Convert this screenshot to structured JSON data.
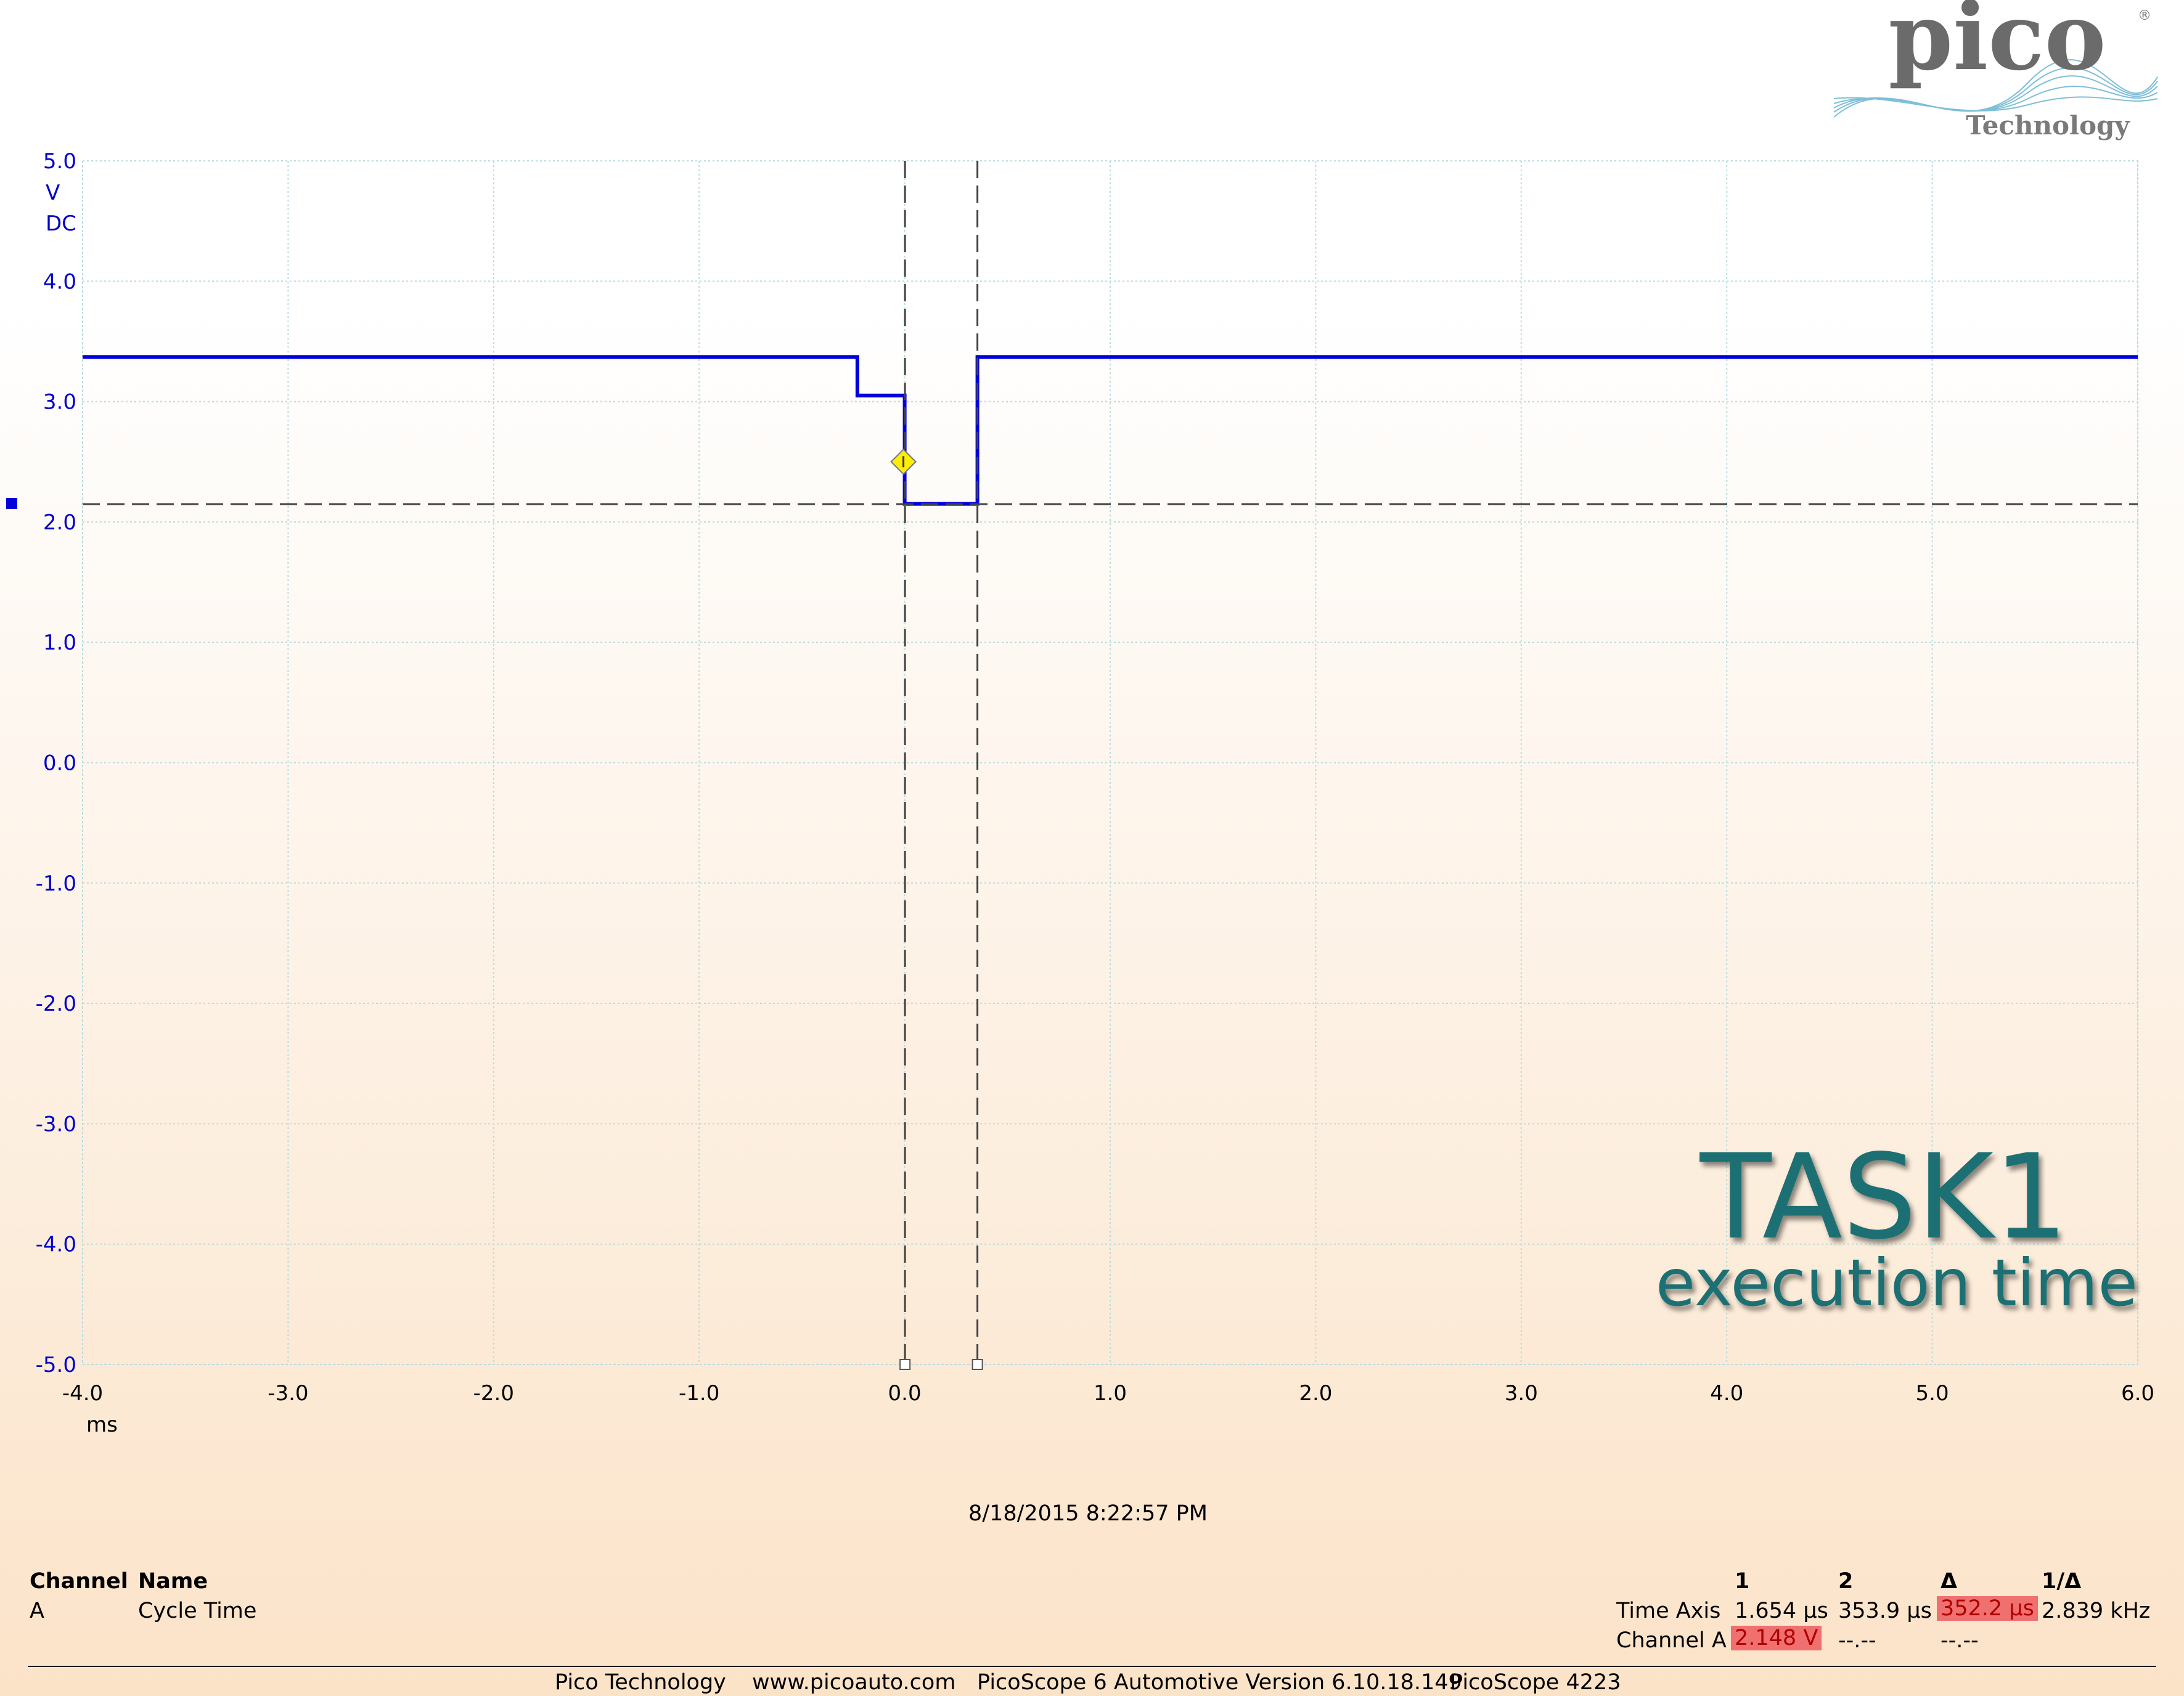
{
  "brand": {
    "logo_text": "pico",
    "logo_sub": "Technology",
    "reg": "®"
  },
  "colors": {
    "trace": "#0000dd",
    "axis_text": "#0000cc",
    "grid": "#b8dde0",
    "cursor": "#444444",
    "title": "#1a6f73",
    "highlight": "#f07070",
    "trigger": "#ffee00"
  },
  "overlay": {
    "title": "TASK1",
    "subtitle": "execution time"
  },
  "timestamp": "8/18/2015 8:22:57 PM",
  "chart_data": {
    "type": "line",
    "y_unit": "V",
    "y_coupling": "DC",
    "x_unit": "ms",
    "xlim": [
      -4.0,
      6.0
    ],
    "ylim": [
      -5.0,
      5.0
    ],
    "x_ticks": [
      "-4.0",
      "-3.0",
      "-2.0",
      "-1.0",
      "0.0",
      "1.0",
      "2.0",
      "3.0",
      "4.0",
      "5.0",
      "6.0"
    ],
    "y_ticks": [
      "5.0",
      "4.0",
      "3.0",
      "2.0",
      "1.0",
      "0.0",
      "-1.0",
      "-2.0",
      "-3.0",
      "-4.0",
      "-5.0"
    ],
    "grid": true,
    "series": [
      {
        "name": "A",
        "x": [
          -4.0,
          -0.23,
          -0.23,
          0.0,
          0.0,
          0.354,
          0.354,
          6.0
        ],
        "y": [
          3.37,
          3.37,
          3.05,
          3.05,
          2.15,
          2.15,
          3.37,
          3.37
        ]
      }
    ],
    "cursors": {
      "time": [
        0.0017,
        0.354
      ],
      "voltage": 2.148
    },
    "trigger": {
      "x": 0.0,
      "y": 2.5
    }
  },
  "measurements": {
    "channel_header": "Channel",
    "name_header": "Name",
    "channel": "A",
    "name": "Cycle Time",
    "col1": "1",
    "col2": "2",
    "col_delta": "Δ",
    "col_inv": "1/Δ",
    "time_axis_label": "Time Axis",
    "time_1": "1.654 μs",
    "time_2": "353.9 μs",
    "time_delta": "352.2 μs",
    "time_inv": "2.839 kHz",
    "channel_a_label": "Channel A",
    "ch_a_1": "2.148 V",
    "ch_a_2": "--.--",
    "ch_a_delta": "--.--"
  },
  "footer": {
    "company": "Pico Technology",
    "url": "www.picoauto.com",
    "version": "PicoScope 6 Automotive Version 6.10.18.149",
    "device": "PicoScope 4223"
  }
}
